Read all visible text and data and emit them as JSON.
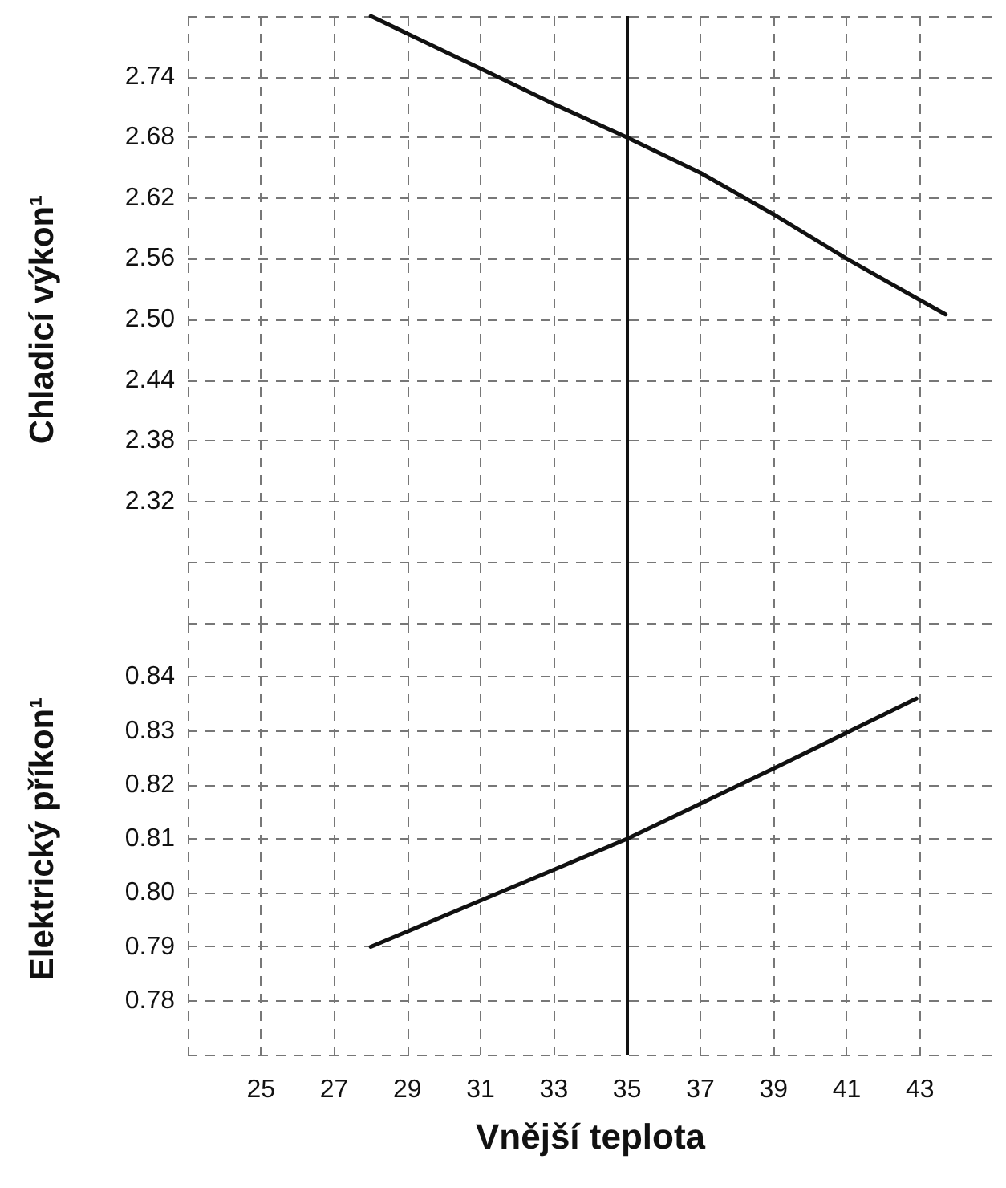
{
  "chart_data": [
    {
      "type": "line",
      "ylabel": "Chladicí výkon¹",
      "x": [
        28,
        31,
        33,
        35,
        37,
        39,
        41,
        43.7
      ],
      "series": [
        {
          "color": "#111111",
          "values": [
            2.8,
            2.748,
            2.713,
            2.68,
            2.645,
            2.604,
            2.56,
            2.505
          ]
        }
      ],
      "xlim": [
        23,
        45
      ],
      "xticks": [
        {
          "value": 23,
          "label": null
        },
        25,
        27,
        29,
        31,
        33,
        35,
        37,
        39,
        41,
        43
      ],
      "ylim": [
        2.2,
        2.8
      ],
      "yticks": [
        {
          "value": 2.26,
          "label": null
        },
        2.32,
        2.38,
        2.44,
        {
          "value": 2.5,
          "label": "2.50"
        },
        2.56,
        2.62,
        2.68,
        2.74,
        {
          "value": 2.8,
          "label": null
        }
      ],
      "tick_labels": "y",
      "grid": true,
      "marker": "none",
      "line_style": "solid",
      "ref_lines": [
        {
          "axis": "x",
          "value": 35,
          "color": "#111111"
        }
      ]
    },
    {
      "type": "line",
      "ylabel": "Elektrický příkon¹",
      "xlabel": "Vnější teplota",
      "x": [
        28,
        31.5,
        35,
        39,
        42.9
      ],
      "series": [
        {
          "color": "#111111",
          "values": [
            0.79,
            0.8,
            0.81,
            0.823,
            0.836
          ]
        }
      ],
      "xlim": [
        23,
        45
      ],
      "xticks": [
        {
          "value": 23,
          "label": null
        },
        25,
        27,
        29,
        31,
        33,
        35,
        37,
        39,
        41,
        43
      ],
      "ylim": [
        0.77,
        0.85
      ],
      "yticks": [
        {
          "value": 0.77,
          "label": null
        },
        0.78,
        0.79,
        {
          "value": 0.8,
          "label": "0.80"
        },
        0.81,
        0.82,
        0.83,
        0.84,
        {
          "value": 0.85,
          "label": null
        }
      ],
      "grid": true,
      "marker": "none",
      "line_style": "solid",
      "ref_lines": [
        {
          "axis": "x",
          "value": 35,
          "color": "#111111"
        }
      ]
    }
  ]
}
